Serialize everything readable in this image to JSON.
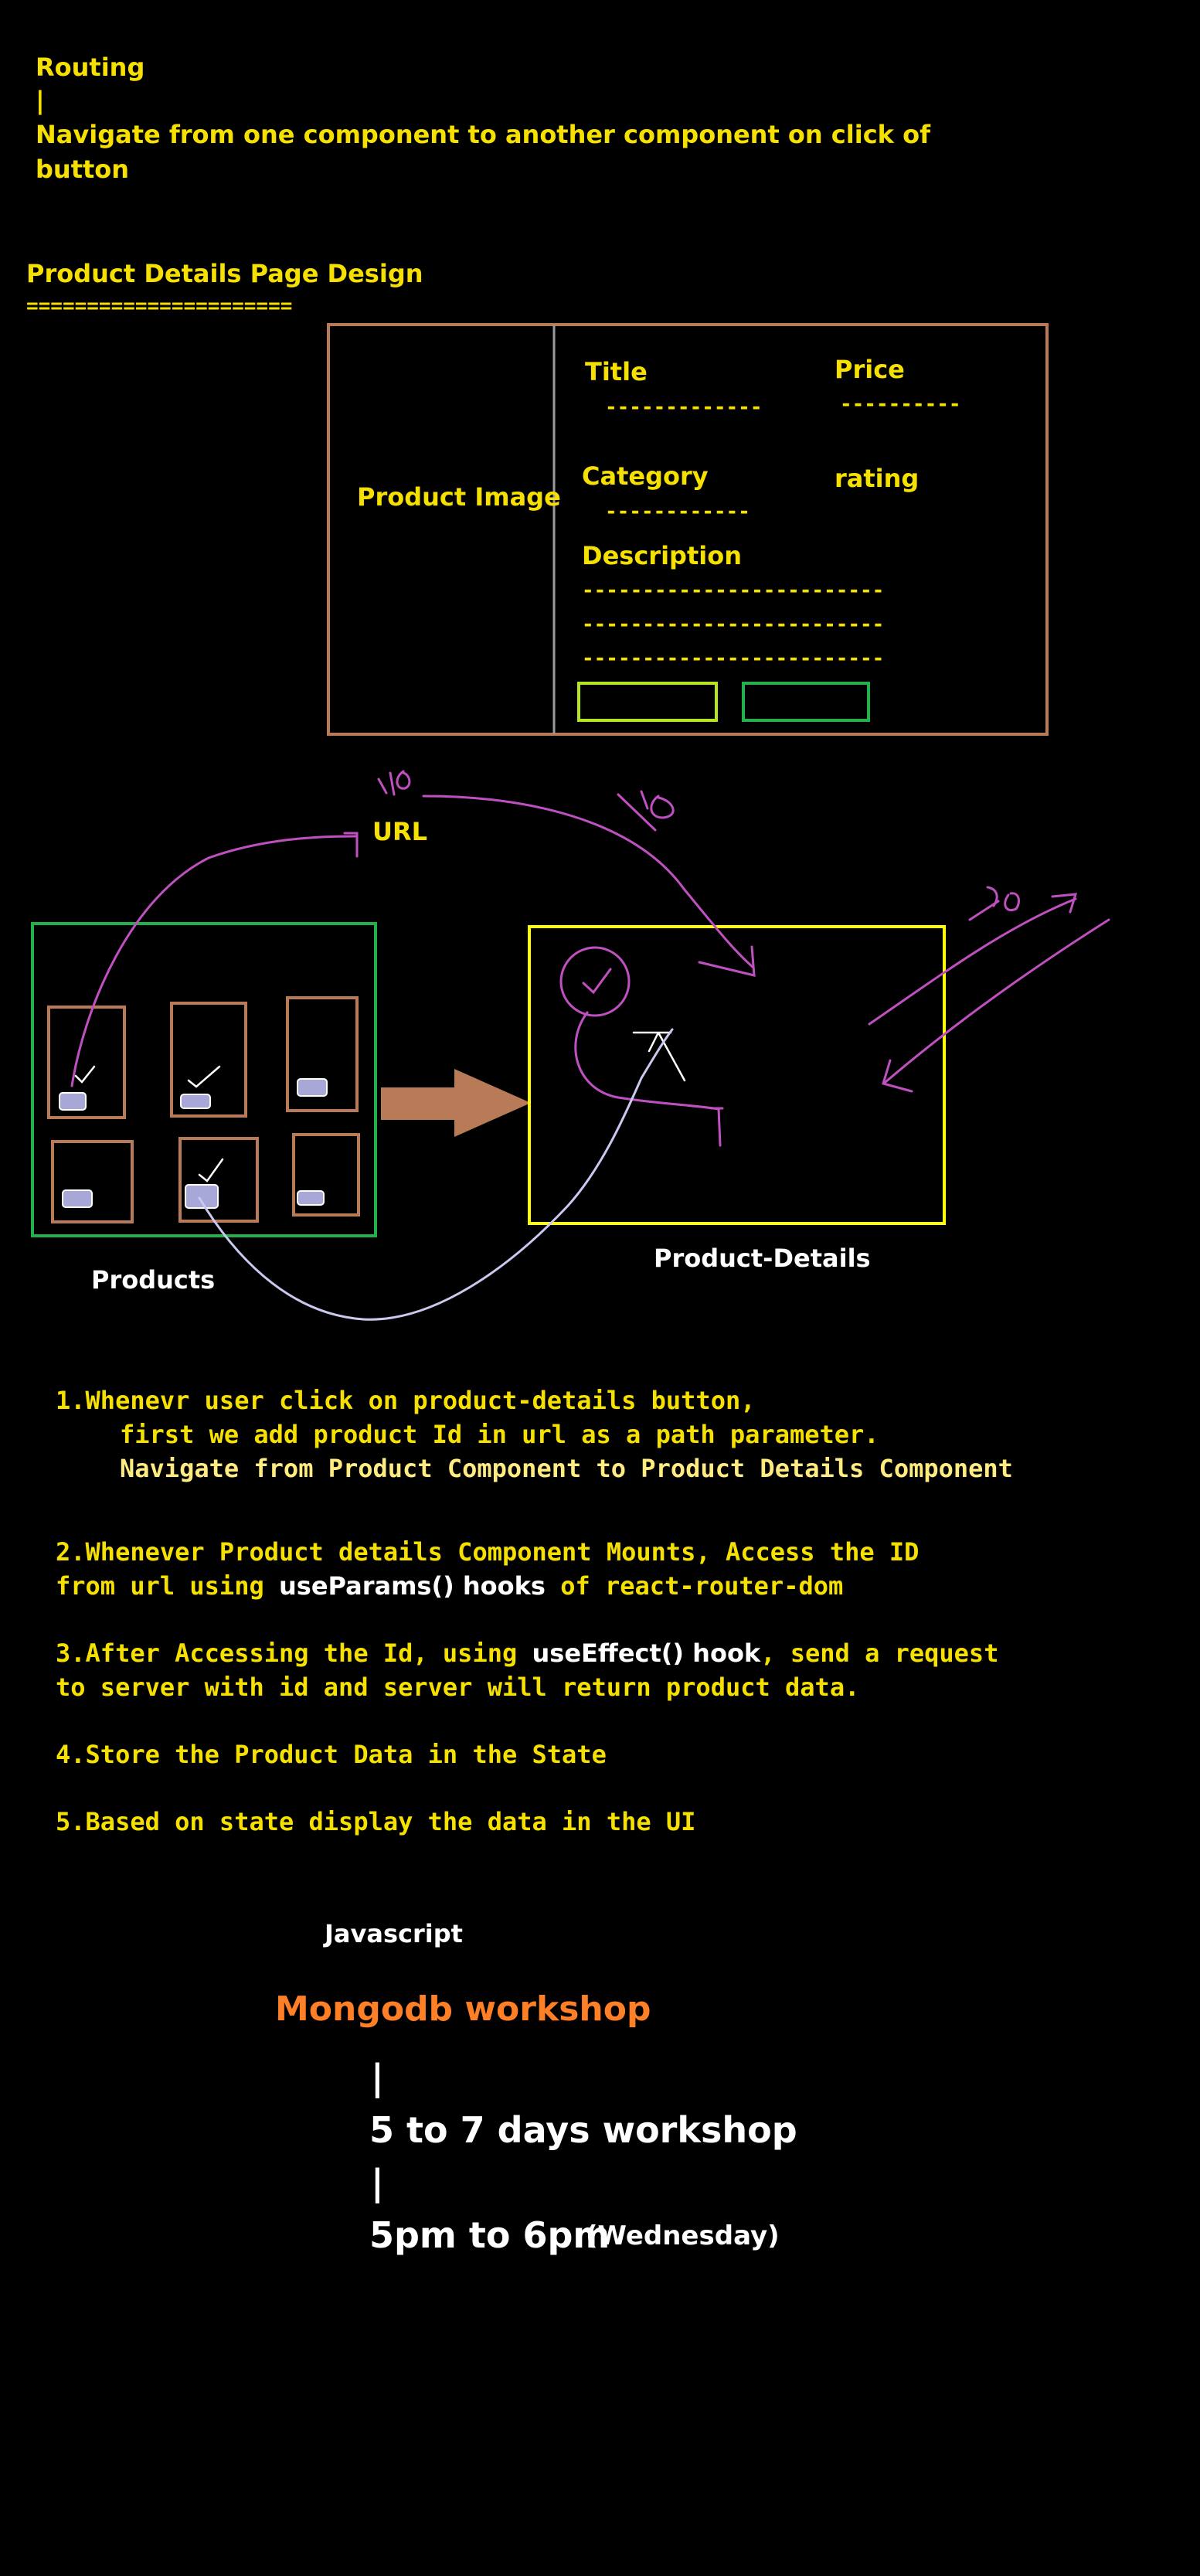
{
  "notes": {
    "heading": "Routing",
    "pipe": "|",
    "line1": "Navigate from one component to another component on click of",
    "line2": "button",
    "design_title": "Product Details Page Design",
    "design_underline": "======================"
  },
  "card": {
    "image_label": "Product Image",
    "title_label": "Title",
    "title_dash": "-------------",
    "price_label": "Price",
    "price_dash": "----------",
    "category_label": "Category",
    "category_dash": "------------",
    "rating_label": "rating",
    "description_label": "Description",
    "desc_line": "-------------------------"
  },
  "flow": {
    "url_label": "URL",
    "id_text": "id",
    "products_label": "Products",
    "details_label": "Product-Details"
  },
  "steps": {
    "s1_a": "1.Whenevr user click on product-details button,",
    "s1_b": "first we add product Id in url as a path parameter.",
    "s1_c": "Navigate from Product Component to Product Details Component",
    "s2_a": "2.Whenever Product details Component Mounts, Access the ID",
    "s2_b1": "from url using ",
    "s2_b2": "useParams() hooks",
    "s2_b3": " of react-router-dom",
    "s3_a1": "3.After Accessing the Id, using ",
    "s3_a2": "useEffect() hook",
    "s3_a3": ", send a request",
    "s3_b": "to server with id and server will return product data.",
    "s4": "4.Store the Product Data in the State",
    "s5": "5.Based on state display the data in the UI"
  },
  "workshop": {
    "javascript": "Javascript",
    "title": "Mongodb workshop",
    "pipe": "|",
    "duration": "5 to 7 days workshop",
    "time": "5pm to 6pm",
    "day": "(Wednesday)"
  },
  "colors": {
    "background": "#000000",
    "text_yellow": "#f5e000",
    "text_white": "#ffffff",
    "workshop_orange": "#ff7f27",
    "card_border": "#b97a57",
    "products_border": "#22b14c",
    "details_border": "#ffff00",
    "arrow_magenta": "#c050c0",
    "arrow_lavender": "#c8c8f0"
  }
}
